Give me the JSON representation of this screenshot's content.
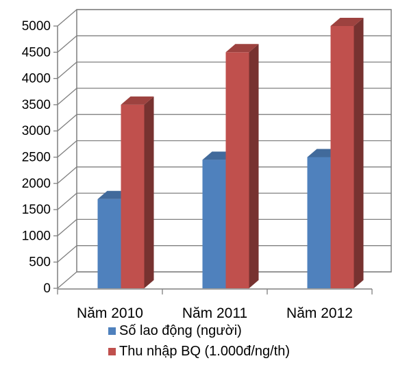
{
  "chart_data": {
    "type": "bar",
    "style": "3d-clustered-column",
    "categories": [
      "Năm 2010",
      "Năm 2011",
      "Năm 2012"
    ],
    "series": [
      {
        "name": "Số lao động (người)",
        "values": [
          1700,
          2450,
          2500
        ],
        "color": "#4F81BD"
      },
      {
        "name": "Thu nhập BQ (1.000đ/ng/th)",
        "values": [
          3500,
          4500,
          5000
        ],
        "color": "#C0504D"
      }
    ],
    "yticks": [
      "0",
      "500",
      "1000",
      "1500",
      "2000",
      "2500",
      "3000",
      "3500",
      "4000",
      "4500",
      "5000"
    ],
    "ylim": [
      0,
      5000
    ],
    "grid": true,
    "legend_position": "bottom",
    "title": "",
    "xlabel": "",
    "ylabel": ""
  }
}
